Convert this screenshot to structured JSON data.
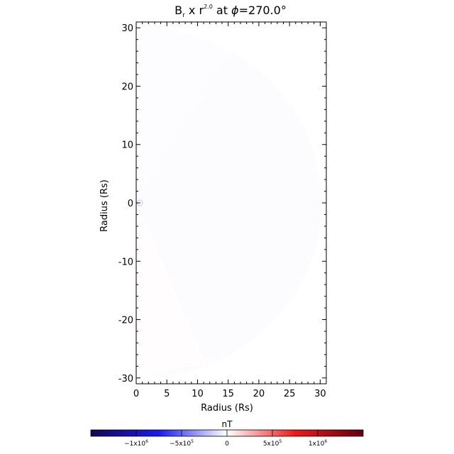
{
  "chart_data": {
    "type": "heatmap",
    "title": {
      "main": "B",
      "sub": "r",
      "mid": " x r",
      "sup": "2.0",
      "tail": " at ",
      "phi": "ϕ",
      "eq": "=270.0°"
    },
    "xlabel": "Radius (Rs)",
    "ylabel": "Radius (Rs)",
    "xlim": [
      0,
      31
    ],
    "ylim": [
      -31,
      31
    ],
    "xticks": [
      0,
      5,
      10,
      15,
      20,
      25,
      30
    ],
    "yticks": [
      -30,
      -20,
      -10,
      0,
      10,
      20,
      30
    ],
    "domain": {
      "shape": "half-disk",
      "outer_radius_rs": 30.2,
      "background_value_nT": -9000,
      "upper_wedge": {
        "angle_from_deg": 90,
        "angle_to_deg": 60,
        "value_nT": -5500
      },
      "lower_wedge": {
        "angle_from_deg": -90,
        "angle_to_deg": -68,
        "value_nT": 7000
      },
      "current_sheet_angle_deg": -68
    },
    "colorbar": {
      "label": "nT",
      "range": [
        -1500000,
        1500000
      ],
      "ticks": [
        {
          "value": -1000000,
          "mant": "−1x10",
          "exp": "6"
        },
        {
          "value": -500000,
          "mant": "−5x10",
          "exp": "5"
        },
        {
          "value": 0,
          "mant": "0",
          "exp": ""
        },
        {
          "value": 500000,
          "mant": "5x10",
          "exp": "5"
        },
        {
          "value": 1000000,
          "mant": "1x10",
          "exp": "6"
        }
      ],
      "colors": [
        "#120850",
        "#1a1aee",
        "#ffffff",
        "#ee1a1a",
        "#600010"
      ]
    }
  }
}
